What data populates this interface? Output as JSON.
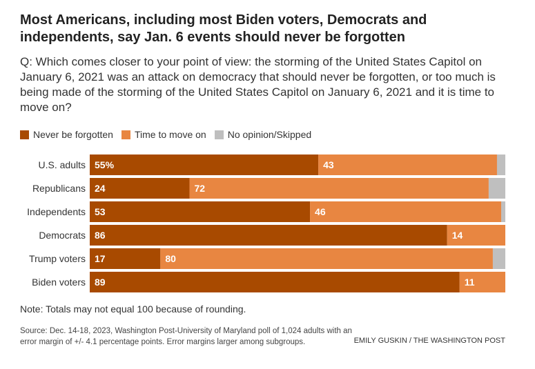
{
  "title": "Most Americans, including most Biden voters, Democrats and independents, say Jan. 6 events should never be forgotten",
  "question": "Q: Which comes closer to your point of view: the storming of the United States Capitol on January 6, 2021 was an attack on democracy that should never be forgotten, or too much is being made of the storming of the United States Capitol on January 6, 2021 and it is time to move on?",
  "note": "Note: Totals may not equal 100 because of rounding.",
  "source": "Source: Dec. 14-18, 2023, Washington Post-University of Maryland poll of 1,024 adults with an error margin of +/- 4.1 percentage points. Error margins larger among subgroups.",
  "credit": "EMILY GUSKIN / THE WASHINGTON POST",
  "chart_data": {
    "type": "bar",
    "orientation": "horizontal",
    "stacked": true,
    "legend_position": "top-left",
    "categories": [
      "U.S. adults",
      "Republicans",
      "Independents",
      "Democrats",
      "Trump voters",
      "Biden voters"
    ],
    "series": [
      {
        "name": "Never be forgotten",
        "color": "#a84a00",
        "values": [
          55,
          24,
          53,
          86,
          17,
          89
        ],
        "labels": [
          "55%",
          "24",
          "53",
          "86",
          "17",
          "89"
        ]
      },
      {
        "name": "Time to move on",
        "color": "#e88641",
        "values": [
          43,
          72,
          46,
          14,
          80,
          11
        ],
        "labels": [
          "43",
          "72",
          "46",
          "14",
          "80",
          "11"
        ]
      },
      {
        "name": "No opinion/Skipped",
        "color": "#bfbfbf",
        "values": [
          2,
          4,
          1,
          0,
          3,
          0
        ],
        "labels": [
          "",
          "",
          "",
          "",
          "",
          ""
        ]
      }
    ],
    "xlim": [
      0,
      100
    ]
  }
}
